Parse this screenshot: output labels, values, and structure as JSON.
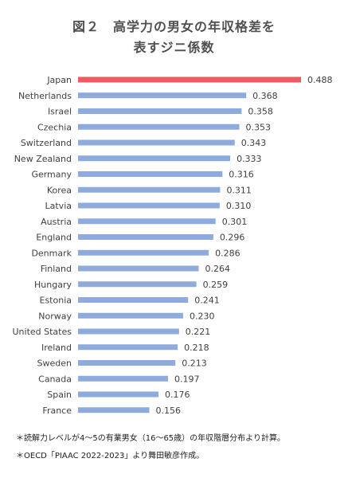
{
  "title": {
    "line1": "図２　高学力の男女の年収格差を",
    "line2": "表すジニ係数"
  },
  "chart_data": {
    "type": "bar",
    "orientation": "horizontal",
    "categories": [
      "Japan",
      "Netherlands",
      "Israel",
      "Czechia",
      "Switzerland",
      "New Zealand",
      "Germany",
      "Korea",
      "Latvia",
      "Austria",
      "England",
      "Denmark",
      "Finland",
      "Hungary",
      "Estonia",
      "Norway",
      "United States",
      "Ireland",
      "Sweden",
      "Canada",
      "Spain",
      "France"
    ],
    "values": [
      0.488,
      0.368,
      0.358,
      0.353,
      0.343,
      0.333,
      0.316,
      0.311,
      0.31,
      0.301,
      0.296,
      0.286,
      0.264,
      0.259,
      0.241,
      0.23,
      0.221,
      0.218,
      0.213,
      0.197,
      0.176,
      0.156
    ],
    "value_labels": [
      "0.488",
      "0.368",
      "0.358",
      "0.353",
      "0.343",
      "0.333",
      "0.316",
      "0.311",
      "0.310",
      "0.301",
      "0.296",
      "0.286",
      "0.264",
      "0.259",
      "0.241",
      "0.230",
      "0.221",
      "0.218",
      "0.213",
      "0.197",
      "0.176",
      "0.156"
    ],
    "highlight_category": "Japan",
    "highlight_color": "#ee5a5f",
    "bar_color": "#8faadc",
    "xlim": [
      0,
      0.5
    ],
    "grid": false,
    "legend": "none",
    "xlabel": "",
    "ylabel": ""
  },
  "notes": [
    "＊読解力レベルが4～5の有業男女（16～65歳）の年収階層分布より計算。",
    "＊OECD「PIAAC 2022-2023」より舞田敏彦作成。"
  ]
}
